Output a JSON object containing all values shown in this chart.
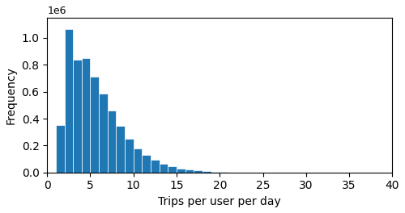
{
  "bar_values": [
    350000,
    1065000,
    840000,
    850000,
    710000,
    585000,
    460000,
    345000,
    250000,
    180000,
    130000,
    97000,
    65000,
    45000,
    30000,
    22000,
    14000,
    8000,
    5000,
    3000,
    1500
  ],
  "bar_start": 1,
  "bar_width": 1,
  "bar_color": "#1f77b4",
  "xlabel": "Trips per user per day",
  "ylabel": "Frequency",
  "xlim": [
    0,
    40
  ],
  "ylim": [
    0,
    1150000
  ],
  "xticks": [
    0,
    5,
    10,
    15,
    20,
    25,
    30,
    35,
    40
  ],
  "yticks": [
    0.0,
    0.2,
    0.4,
    0.6,
    0.8,
    1.0
  ],
  "scale_label": "1e6",
  "figsize": [
    5.0,
    2.64
  ],
  "dpi": 100
}
